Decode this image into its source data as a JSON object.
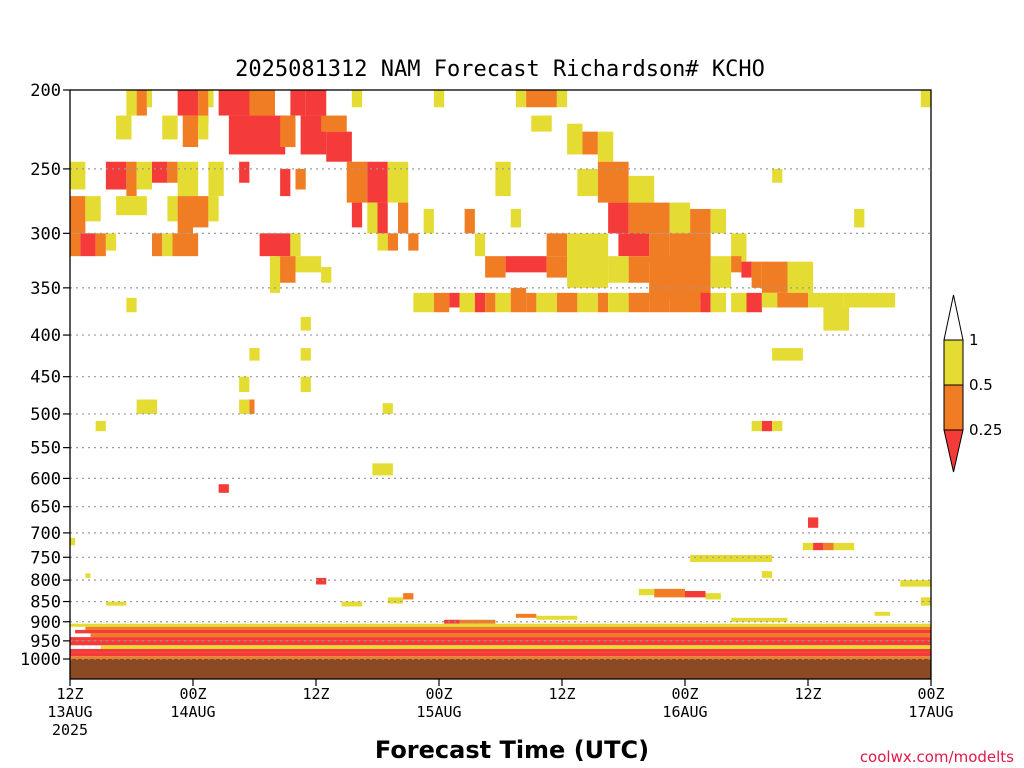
{
  "chart_data": {
    "type": "heatmap",
    "title": "2025081312 NAM Forecast Richardson# KCHO",
    "xlabel": "Forecast Time (UTC)",
    "ylabel": "",
    "watermark": "coolwx.com/modelts",
    "x_unit": "hours since 2025-08-13 12Z",
    "xlim": [
      0,
      84
    ],
    "ylim_hpa": [
      1000,
      200
    ],
    "y_scale": "log-pressure",
    "grid": "dotted horizontal at pressure ticks",
    "yticks": [
      200,
      250,
      300,
      350,
      400,
      450,
      500,
      550,
      600,
      650,
      700,
      750,
      800,
      850,
      900,
      950,
      1000
    ],
    "xticks": [
      {
        "h": 0,
        "lines": [
          "12Z",
          "13AUG",
          "2025"
        ]
      },
      {
        "h": 12,
        "lines": [
          "00Z",
          "14AUG"
        ]
      },
      {
        "h": 24,
        "lines": [
          "12Z"
        ]
      },
      {
        "h": 36,
        "lines": [
          "00Z",
          "15AUG"
        ]
      },
      {
        "h": 48,
        "lines": [
          "12Z"
        ]
      },
      {
        "h": 60,
        "lines": [
          "00Z",
          "16AUG"
        ]
      },
      {
        "h": 72,
        "lines": [
          "12Z"
        ]
      },
      {
        "h": 84,
        "lines": [
          "00Z",
          "17AUG"
        ]
      }
    ],
    "ground": {
      "color": "#8b4a24",
      "from_hpa": 1000
    },
    "colorbar": {
      "levels": [
        {
          "label": "1",
          "value": 1
        },
        {
          "label": "0.5",
          "value": 0.5
        },
        {
          "label": "0.25",
          "value": 0.25
        }
      ],
      "bins": [
        {
          "range": "<0.25",
          "color": "#f53a3a"
        },
        {
          "range": "0.25-0.5",
          "color": "#f07d23"
        },
        {
          "range": "0.5-1",
          "color": "#e5dc33"
        },
        {
          "range": ">1",
          "color": "#ffffff"
        }
      ]
    },
    "cells_note": "each cell: [start_hour, end_hour, pressure_top_hPa, pressure_bottom_hPa, Ri_bin] with bin r=<0.25, o=0.25-0.5, y=0.5-1",
    "cells": [
      [
        5.5,
        6.5,
        200,
        215,
        "y"
      ],
      [
        6.5,
        7.5,
        200,
        215,
        "o"
      ],
      [
        7.5,
        8.0,
        200,
        210,
        "y"
      ],
      [
        10.5,
        12.5,
        200,
        215,
        "r"
      ],
      [
        12.5,
        13.5,
        200,
        220,
        "o"
      ],
      [
        13.5,
        14.0,
        200,
        210,
        "y"
      ],
      [
        14.5,
        20.0,
        200,
        215,
        "r"
      ],
      [
        17.5,
        20.0,
        200,
        215,
        "o"
      ],
      [
        21.5,
        23.0,
        200,
        215,
        "r"
      ],
      [
        23.0,
        25.0,
        200,
        215,
        "r"
      ],
      [
        27.5,
        28.5,
        200,
        210,
        "y"
      ],
      [
        35.5,
        36.5,
        200,
        210,
        "y"
      ],
      [
        43.5,
        44.5,
        200,
        210,
        "y"
      ],
      [
        44.5,
        47.5,
        200,
        210,
        "o"
      ],
      [
        47.5,
        48.5,
        200,
        210,
        "y"
      ],
      [
        83.0,
        84.0,
        200,
        210,
        "y"
      ],
      [
        15.5,
        18.0,
        215,
        240,
        "r"
      ],
      [
        18.0,
        21.0,
        215,
        240,
        "r"
      ],
      [
        20.5,
        22.0,
        215,
        235,
        "o"
      ],
      [
        22.5,
        25.0,
        215,
        240,
        "r"
      ],
      [
        25.0,
        27.5,
        225,
        245,
        "r"
      ],
      [
        4.5,
        6.0,
        215,
        230,
        "y"
      ],
      [
        9.0,
        10.5,
        215,
        230,
        "y"
      ],
      [
        11.0,
        12.5,
        215,
        235,
        "o"
      ],
      [
        12.5,
        13.5,
        215,
        230,
        "y"
      ],
      [
        24.5,
        27.0,
        215,
        225,
        "o"
      ],
      [
        45.0,
        47.0,
        215,
        225,
        "y"
      ],
      [
        48.5,
        50.0,
        220,
        240,
        "y"
      ],
      [
        50.0,
        51.5,
        225,
        240,
        "o"
      ],
      [
        51.5,
        53.0,
        225,
        245,
        "y"
      ],
      [
        3.5,
        5.5,
        245,
        265,
        "r"
      ],
      [
        5.5,
        6.5,
        245,
        270,
        "o"
      ],
      [
        6.5,
        8.0,
        245,
        265,
        "y"
      ],
      [
        8.0,
        9.5,
        245,
        260,
        "r"
      ],
      [
        9.5,
        10.5,
        245,
        260,
        "o"
      ],
      [
        10.5,
        12.5,
        245,
        270,
        "y"
      ],
      [
        0.0,
        1.5,
        245,
        265,
        "y"
      ],
      [
        13.5,
        15.0,
        245,
        270,
        "y"
      ],
      [
        16.5,
        17.5,
        245,
        260,
        "r"
      ],
      [
        20.5,
        21.5,
        250,
        270,
        "r"
      ],
      [
        22.0,
        23.0,
        250,
        265,
        "o"
      ],
      [
        27.0,
        29.0,
        245,
        275,
        "o"
      ],
      [
        29.0,
        31.0,
        245,
        275,
        "r"
      ],
      [
        31.0,
        33.0,
        245,
        275,
        "y"
      ],
      [
        41.5,
        43.0,
        245,
        270,
        "y"
      ],
      [
        49.5,
        51.5,
        250,
        270,
        "y"
      ],
      [
        51.5,
        54.5,
        245,
        275,
        "o"
      ],
      [
        54.5,
        57.0,
        255,
        275,
        "y"
      ],
      [
        68.5,
        69.5,
        250,
        260,
        "y"
      ],
      [
        0.0,
        1.5,
        270,
        300,
        "o"
      ],
      [
        1.5,
        3.0,
        270,
        290,
        "y"
      ],
      [
        4.5,
        7.5,
        270,
        285,
        "y"
      ],
      [
        9.5,
        10.5,
        270,
        290,
        "y"
      ],
      [
        10.5,
        12.0,
        270,
        300,
        "o"
      ],
      [
        12.0,
        13.5,
        270,
        295,
        "o"
      ],
      [
        13.5,
        14.5,
        270,
        290,
        "y"
      ],
      [
        27.5,
        28.5,
        275,
        295,
        "r"
      ],
      [
        29.0,
        30.0,
        275,
        300,
        "y"
      ],
      [
        30.0,
        31.0,
        275,
        300,
        "r"
      ],
      [
        32.0,
        33.0,
        275,
        300,
        "o"
      ],
      [
        34.5,
        35.5,
        280,
        300,
        "y"
      ],
      [
        38.5,
        39.5,
        280,
        300,
        "o"
      ],
      [
        43.0,
        44.0,
        280,
        295,
        "y"
      ],
      [
        52.5,
        54.5,
        275,
        300,
        "r"
      ],
      [
        54.5,
        56.0,
        275,
        305,
        "o"
      ],
      [
        56.0,
        58.5,
        275,
        300,
        "o"
      ],
      [
        58.5,
        60.5,
        275,
        300,
        "y"
      ],
      [
        60.5,
        62.5,
        280,
        300,
        "o"
      ],
      [
        62.5,
        64.0,
        280,
        300,
        "y"
      ],
      [
        76.5,
        77.5,
        280,
        295,
        "y"
      ],
      [
        0.0,
        1.0,
        300,
        320,
        "o"
      ],
      [
        1.0,
        2.5,
        300,
        320,
        "r"
      ],
      [
        2.5,
        3.5,
        300,
        320,
        "o"
      ],
      [
        3.5,
        4.5,
        300,
        315,
        "y"
      ],
      [
        8.0,
        9.0,
        300,
        320,
        "o"
      ],
      [
        9.0,
        10.0,
        300,
        320,
        "y"
      ],
      [
        10.0,
        12.5,
        300,
        320,
        "o"
      ],
      [
        18.5,
        21.5,
        300,
        320,
        "r"
      ],
      [
        21.5,
        22.5,
        300,
        320,
        "y"
      ],
      [
        30.0,
        31.0,
        300,
        315,
        "y"
      ],
      [
        31.0,
        32.0,
        300,
        315,
        "o"
      ],
      [
        33.0,
        34.0,
        300,
        315,
        "o"
      ],
      [
        39.5,
        40.5,
        300,
        320,
        "y"
      ],
      [
        46.5,
        48.5,
        300,
        320,
        "o"
      ],
      [
        48.5,
        52.5,
        300,
        325,
        "y"
      ],
      [
        53.5,
        56.5,
        300,
        320,
        "r"
      ],
      [
        56.5,
        58.5,
        300,
        325,
        "o"
      ],
      [
        58.5,
        62.5,
        300,
        325,
        "o"
      ],
      [
        64.5,
        66.0,
        300,
        325,
        "y"
      ],
      [
        40.5,
        42.5,
        320,
        340,
        "o"
      ],
      [
        42.5,
        46.5,
        320,
        335,
        "r"
      ],
      [
        46.5,
        48.5,
        320,
        340,
        "o"
      ],
      [
        48.5,
        52.5,
        320,
        350,
        "y"
      ],
      [
        52.5,
        54.5,
        320,
        345,
        "y"
      ],
      [
        54.5,
        56.5,
        320,
        345,
        "o"
      ],
      [
        56.5,
        62.5,
        320,
        360,
        "o"
      ],
      [
        62.5,
        64.5,
        320,
        350,
        "y"
      ],
      [
        64.5,
        65.5,
        320,
        335,
        "o"
      ],
      [
        65.5,
        66.5,
        325,
        340,
        "r"
      ],
      [
        66.5,
        67.5,
        325,
        350,
        "o"
      ],
      [
        67.5,
        70.0,
        325,
        355,
        "o"
      ],
      [
        70.0,
        72.5,
        325,
        355,
        "y"
      ],
      [
        20.0,
        22.0,
        320,
        345,
        "o"
      ],
      [
        22.0,
        24.5,
        320,
        335,
        "y"
      ],
      [
        24.5,
        25.5,
        330,
        345,
        "y"
      ],
      [
        19.5,
        20.5,
        320,
        355,
        "y"
      ],
      [
        33.5,
        35.5,
        355,
        375,
        "y"
      ],
      [
        35.5,
        37.0,
        355,
        375,
        "o"
      ],
      [
        37.0,
        38.0,
        355,
        370,
        "r"
      ],
      [
        38.0,
        39.5,
        355,
        375,
        "y"
      ],
      [
        39.5,
        40.5,
        355,
        375,
        "r"
      ],
      [
        40.5,
        41.5,
        355,
        375,
        "o"
      ],
      [
        41.5,
        43.0,
        355,
        375,
        "y"
      ],
      [
        43.0,
        44.5,
        350,
        375,
        "o"
      ],
      [
        44.5,
        45.5,
        355,
        375,
        "o"
      ],
      [
        45.5,
        47.5,
        355,
        375,
        "y"
      ],
      [
        47.5,
        49.5,
        355,
        375,
        "o"
      ],
      [
        49.5,
        51.5,
        355,
        375,
        "y"
      ],
      [
        51.5,
        52.5,
        355,
        375,
        "o"
      ],
      [
        52.5,
        54.5,
        355,
        375,
        "y"
      ],
      [
        54.5,
        56.5,
        355,
        375,
        "o"
      ],
      [
        56.5,
        58.5,
        355,
        375,
        "o"
      ],
      [
        58.5,
        61.5,
        355,
        375,
        "o"
      ],
      [
        61.5,
        62.5,
        355,
        375,
        "r"
      ],
      [
        62.5,
        64.0,
        355,
        375,
        "y"
      ],
      [
        64.5,
        66.0,
        355,
        375,
        "y"
      ],
      [
        66.0,
        67.5,
        355,
        375,
        "r"
      ],
      [
        67.5,
        69.0,
        355,
        370,
        "y"
      ],
      [
        69.0,
        72.0,
        355,
        370,
        "o"
      ],
      [
        72.0,
        75.5,
        355,
        370,
        "y"
      ],
      [
        75.5,
        80.5,
        355,
        370,
        "y"
      ],
      [
        73.5,
        76.0,
        370,
        395,
        "y"
      ],
      [
        5.5,
        6.5,
        360,
        375,
        "y"
      ],
      [
        22.5,
        23.5,
        380,
        395,
        "y"
      ],
      [
        17.5,
        18.5,
        415,
        430,
        "y"
      ],
      [
        22.5,
        23.5,
        415,
        430,
        "y"
      ],
      [
        68.5,
        71.5,
        415,
        430,
        "y"
      ],
      [
        16.5,
        17.5,
        450,
        470,
        "y"
      ],
      [
        22.5,
        23.5,
        450,
        470,
        "y"
      ],
      [
        6.5,
        8.5,
        480,
        500,
        "y"
      ],
      [
        16.5,
        17.5,
        480,
        500,
        "y"
      ],
      [
        17.5,
        18.0,
        480,
        500,
        "o"
      ],
      [
        30.5,
        31.5,
        485,
        500,
        "y"
      ],
      [
        2.5,
        3.5,
        510,
        525,
        "y"
      ],
      [
        66.5,
        67.5,
        510,
        525,
        "y"
      ],
      [
        67.5,
        68.5,
        510,
        525,
        "r"
      ],
      [
        68.5,
        69.5,
        510,
        525,
        "y"
      ],
      [
        29.5,
        31.5,
        575,
        595,
        "y"
      ],
      [
        14.5,
        15.5,
        610,
        625,
        "r"
      ],
      [
        72.0,
        73.0,
        670,
        690,
        "r"
      ],
      [
        71.5,
        72.5,
        720,
        735,
        "y"
      ],
      [
        72.5,
        73.5,
        720,
        735,
        "r"
      ],
      [
        73.5,
        74.5,
        720,
        735,
        "o"
      ],
      [
        74.5,
        76.5,
        720,
        735,
        "y"
      ],
      [
        0.0,
        0.5,
        710,
        725,
        "y"
      ],
      [
        60.5,
        68.5,
        745,
        760,
        "y"
      ],
      [
        67.5,
        68.5,
        780,
        795,
        "y"
      ],
      [
        24.0,
        25.0,
        795,
        810,
        "r"
      ],
      [
        81.0,
        84.0,
        800,
        815,
        "y"
      ],
      [
        1.5,
        2.0,
        785,
        795,
        "y"
      ],
      [
        55.5,
        57.0,
        820,
        835,
        "y"
      ],
      [
        57.0,
        60.0,
        820,
        840,
        "o"
      ],
      [
        60.0,
        62.0,
        825,
        840,
        "r"
      ],
      [
        62.0,
        63.5,
        830,
        845,
        "y"
      ],
      [
        32.5,
        33.5,
        830,
        845,
        "o"
      ],
      [
        31.0,
        32.5,
        840,
        855,
        "y"
      ],
      [
        26.5,
        28.5,
        850,
        862,
        "y"
      ],
      [
        3.5,
        5.5,
        850,
        860,
        "y"
      ],
      [
        83.0,
        84.0,
        840,
        860,
        "y"
      ],
      [
        78.5,
        80.0,
        875,
        885,
        "y"
      ],
      [
        43.5,
        45.5,
        880,
        890,
        "o"
      ],
      [
        45.5,
        49.5,
        885,
        895,
        "y"
      ],
      [
        64.5,
        70.0,
        890,
        900,
        "y"
      ],
      [
        36.5,
        38.0,
        895,
        905,
        "r"
      ],
      [
        38.0,
        41.5,
        895,
        905,
        "o"
      ],
      [
        0.0,
        84.0,
        905,
        913,
        "y"
      ],
      [
        1.5,
        84.0,
        913,
        921,
        "o"
      ],
      [
        0.5,
        84.0,
        921,
        930,
        "r"
      ],
      [
        2.0,
        84.0,
        930,
        940,
        "o"
      ],
      [
        0.0,
        84.0,
        940,
        950,
        "r"
      ],
      [
        0.0,
        84.0,
        950,
        962,
        "r"
      ],
      [
        3.0,
        84.0,
        962,
        972,
        "y"
      ],
      [
        0.0,
        84.0,
        972,
        982,
        "r"
      ],
      [
        0.0,
        84.0,
        982,
        992,
        "r"
      ],
      [
        0.0,
        84.0,
        992,
        1000,
        "o"
      ]
    ]
  }
}
